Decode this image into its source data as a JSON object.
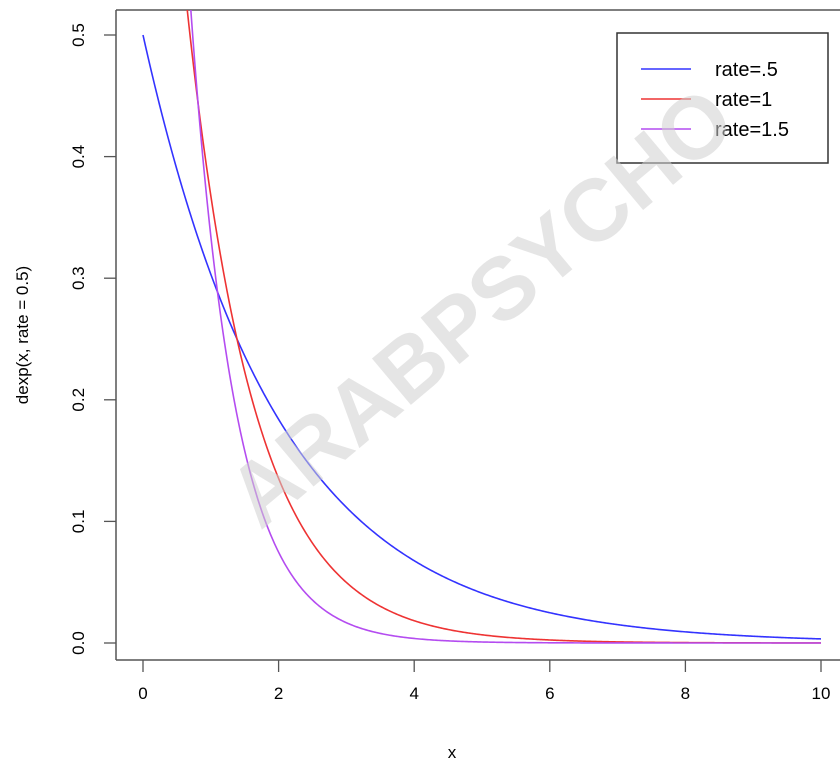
{
  "watermark": "ARABPSYCHO",
  "chart_data": {
    "type": "line",
    "title": "",
    "xlabel": "x",
    "ylabel": "dexp(x, rate = 0.5)",
    "xlim": [
      -0.4,
      10.4
    ],
    "ylim": [
      0,
      0.52
    ],
    "x_ticks": [
      0,
      2,
      4,
      6,
      8,
      10
    ],
    "x_tick_labels": [
      "0",
      "2",
      "4",
      "6",
      "8",
      "10"
    ],
    "y_ticks": [
      0.0,
      0.1,
      0.2,
      0.3,
      0.4,
      0.5
    ],
    "y_tick_labels": [
      "0.0",
      "0.1",
      "0.2",
      "0.3",
      "0.4",
      "0.5"
    ],
    "grid": false,
    "legend_position": "top-right",
    "x_range": [
      0,
      10
    ],
    "series": [
      {
        "name": "rate=.5",
        "rate": 0.5,
        "color": "#3333ff"
      },
      {
        "name": "rate=1",
        "rate": 1,
        "color": "#ee3333"
      },
      {
        "name": "rate=1.5",
        "rate": 1.5,
        "color": "#b44cf0"
      }
    ]
  }
}
